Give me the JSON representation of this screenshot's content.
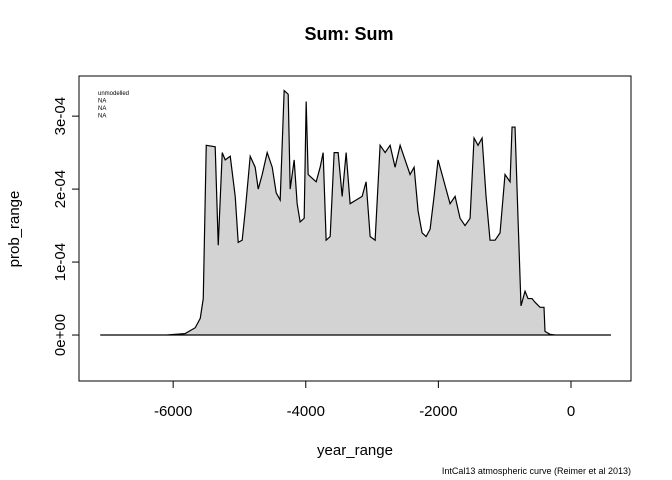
{
  "chart_data": {
    "type": "area",
    "title": "Sum:  Sum",
    "x_label": "year_range",
    "y_label": "prob_range",
    "footnote": "IntCal13 atmospheric curve (Reimer et al 2013)",
    "legend_text": [
      "unmodelled",
      "NA",
      "NA",
      "NA"
    ],
    "color": "#d3d3d3",
    "x": [
      -7100,
      -6100,
      -5818,
      -5667,
      -5591,
      -5546,
      -5501,
      -5366,
      -5320,
      -5260,
      -5215,
      -5139,
      -5064,
      -5019,
      -4959,
      -4913,
      -4838,
      -4763,
      -4717,
      -4657,
      -4582,
      -4506,
      -4446,
      -4386,
      -4326,
      -4265,
      -4235,
      -4175,
      -4130,
      -4085,
      -4024,
      -3994,
      -3964,
      -3904,
      -3843,
      -3783,
      -3738,
      -3693,
      -3632,
      -3572,
      -3512,
      -3451,
      -3391,
      -3331,
      -3240,
      -3150,
      -3090,
      -3029,
      -2954,
      -2879,
      -2803,
      -2728,
      -2653,
      -2577,
      -2502,
      -2427,
      -2366,
      -2306,
      -2246,
      -2185,
      -2125,
      -2065,
      -2005,
      -1944,
      -1884,
      -1824,
      -1748,
      -1673,
      -1598,
      -1522,
      -1462,
      -1402,
      -1341,
      -1281,
      -1221,
      -1145,
      -1070,
      -995,
      -919,
      -889,
      -844,
      -799,
      -754,
      -693,
      -648,
      -588,
      -543,
      -467,
      -407,
      -392,
      -317,
      -241,
      603
    ],
    "values": [
      0,
      0,
      2e-06,
      1e-05,
      2.3e-05,
      5e-05,
      0.00026,
      0.000258,
      0.000123,
      0.00025,
      0.00024,
      0.000245,
      0.00019,
      0.000127,
      0.00013,
      0.00017,
      0.000245,
      0.00023,
      0.0002,
      0.00022,
      0.00025,
      0.00023,
      0.000195,
      0.000185,
      0.000335,
      0.00033,
      0.0002,
      0.00024,
      0.00018,
      0.000155,
      0.00016,
      0.00032,
      0.00022,
      0.000215,
      0.00021,
      0.00023,
      0.00025,
      0.00013,
      0.000135,
      0.00025,
      0.00025,
      0.00019,
      0.00025,
      0.00018,
      0.000185,
      0.00019,
      0.00021,
      0.000135,
      0.00013,
      0.00026,
      0.00025,
      0.00026,
      0.00023,
      0.00026,
      0.00024,
      0.00022,
      0.00023,
      0.00017,
      0.00014,
      0.000135,
      0.000145,
      0.00019,
      0.00024,
      0.00022,
      0.0002,
      0.00018,
      0.00019,
      0.00016,
      0.00015,
      0.00016,
      0.00027,
      0.00026,
      0.00027,
      0.00019,
      0.00013,
      0.00013,
      0.00014,
      0.00022,
      0.00021,
      0.000285,
      0.000285,
      0.00016,
      4e-05,
      6e-05,
      5e-05,
      5e-05,
      4.5e-05,
      3.8e-05,
      3.8e-05,
      5e-06,
      1e-06,
      0,
      0
    ],
    "xlim": [
      -7420,
      905
    ],
    "ylim": [
      -6.3e-05,
      0.000355
    ],
    "xticks": [
      -6000,
      -4000,
      -2000,
      0
    ],
    "yticks": [
      {
        "value": 0,
        "label": "0e+00"
      },
      {
        "value": 0.0001,
        "label": "1e-04"
      },
      {
        "value": 0.0002,
        "label": "2e-04"
      },
      {
        "value": 0.0003,
        "label": "3e-04"
      }
    ]
  }
}
